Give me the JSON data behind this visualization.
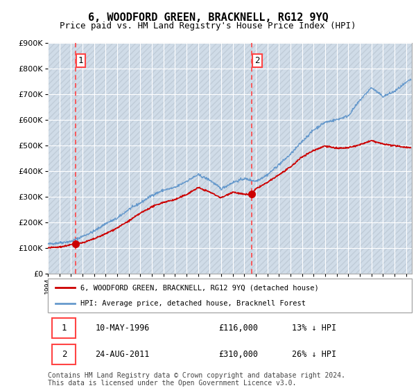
{
  "title": "6, WOODFORD GREEN, BRACKNELL, RG12 9YQ",
  "subtitle": "Price paid vs. HM Land Registry's House Price Index (HPI)",
  "ylim": [
    0,
    900000
  ],
  "xlim_start": 1994.0,
  "xlim_end": 2025.5,
  "sale1_x": 1996.37,
  "sale1_y": 116000,
  "sale2_x": 2011.65,
  "sale2_y": 310000,
  "sale1_date": "10-MAY-1996",
  "sale1_price": "£116,000",
  "sale1_pct": "13% ↓ HPI",
  "sale2_date": "24-AUG-2011",
  "sale2_price": "£310,000",
  "sale2_pct": "26% ↓ HPI",
  "legend_line1": "6, WOODFORD GREEN, BRACKNELL, RG12 9YQ (detached house)",
  "legend_line2": "HPI: Average price, detached house, Bracknell Forest",
  "footer": "Contains HM Land Registry data © Crown copyright and database right 2024.\nThis data is licensed under the Open Government Licence v3.0.",
  "hpi_color": "#6699cc",
  "price_color": "#cc0000",
  "marker_color": "#cc0000",
  "dashed_color": "#ff4444",
  "background_hatch": "#d0dce8",
  "hpi_anchors_x": [
    1994.0,
    1995.0,
    1996.0,
    1997.0,
    1998.0,
    1999.0,
    2000.0,
    2001.0,
    2002.0,
    2003.0,
    2004.0,
    2005.0,
    2006.0,
    2007.0,
    2008.0,
    2009.0,
    2010.0,
    2011.0,
    2012.0,
    2013.0,
    2014.0,
    2015.0,
    2016.0,
    2017.0,
    2018.0,
    2019.0,
    2020.0,
    2021.0,
    2022.0,
    2023.0,
    2024.0,
    2025.5
  ],
  "hpi_anchors_y": [
    115000,
    120000,
    125000,
    145000,
    165000,
    195000,
    215000,
    250000,
    275000,
    305000,
    325000,
    335000,
    360000,
    385000,
    365000,
    330000,
    355000,
    370000,
    360000,
    385000,
    425000,
    465000,
    515000,
    560000,
    590000,
    600000,
    615000,
    675000,
    725000,
    690000,
    710000,
    760000
  ],
  "price_anchors_x": [
    1994.0,
    1995.0,
    1996.0,
    1996.37,
    1997.0,
    1998.0,
    1999.0,
    2000.0,
    2001.0,
    2002.0,
    2003.0,
    2004.0,
    2005.0,
    2006.0,
    2007.0,
    2008.0,
    2009.0,
    2010.0,
    2011.0,
    2011.65,
    2012.0,
    2013.0,
    2014.0,
    2015.0,
    2016.0,
    2017.0,
    2018.0,
    2019.0,
    2020.0,
    2021.0,
    2022.0,
    2023.0,
    2024.0,
    2025.5
  ],
  "price_anchors_y": [
    100000,
    103000,
    112000,
    116000,
    120000,
    135000,
    155000,
    178000,
    205000,
    235000,
    260000,
    278000,
    288000,
    308000,
    335000,
    318000,
    295000,
    318000,
    308000,
    310000,
    330000,
    355000,
    385000,
    415000,
    455000,
    480000,
    498000,
    488000,
    490000,
    502000,
    518000,
    505000,
    498000,
    490000
  ],
  "title_fontsize": 11,
  "subtitle_fontsize": 9,
  "footer_fontsize": 7
}
